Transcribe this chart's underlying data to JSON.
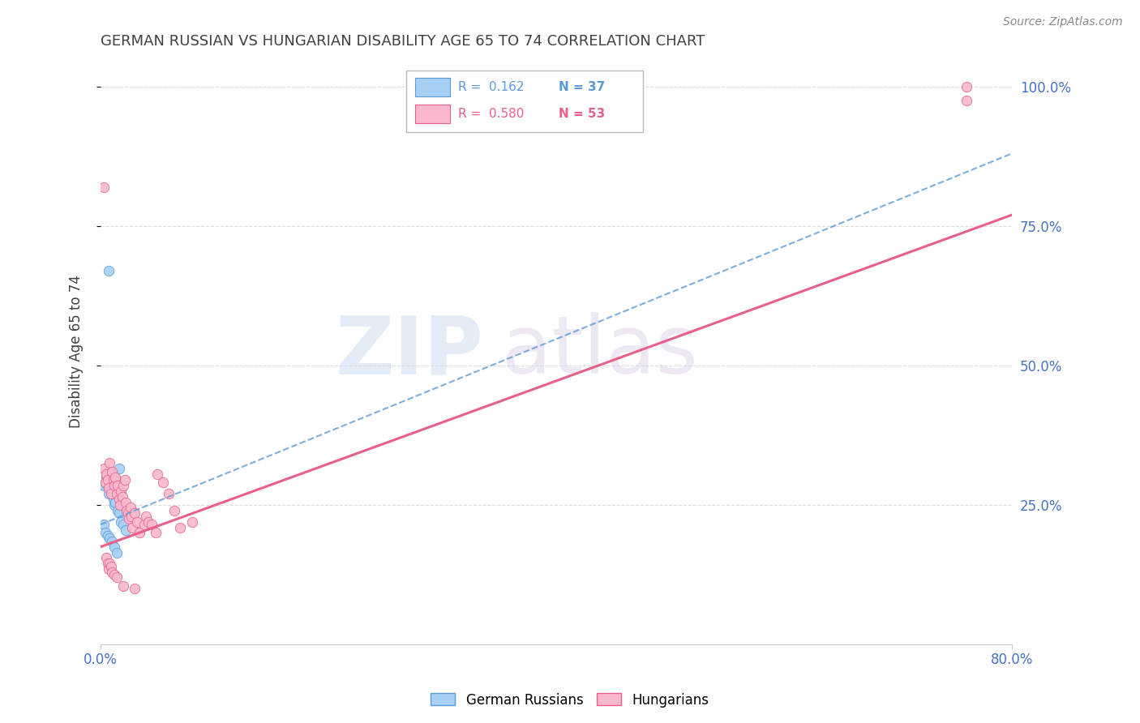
{
  "title": "GERMAN RUSSIAN VS HUNGARIAN DISABILITY AGE 65 TO 74 CORRELATION CHART",
  "source": "Source: ZipAtlas.com",
  "ylabel": "Disability Age 65 to 74",
  "xmin": 0.0,
  "xmax": 0.8,
  "ymin": 0.0,
  "ymax": 1.05,
  "x_tick_labels": [
    "0.0%",
    "80.0%"
  ],
  "y_tick_labels": [
    "25.0%",
    "50.0%",
    "75.0%",
    "100.0%"
  ],
  "y_ticks": [
    0.25,
    0.5,
    0.75,
    1.0
  ],
  "german_russian_color": "#A8D0F5",
  "hungarian_color": "#F9B8CC",
  "trend_german_color": "#5B9BD5",
  "trend_hungarian_color": "#E8608A",
  "background_color": "#FFFFFF",
  "grid_color": "#DDDDDD",
  "title_color": "#404040",
  "tick_color": "#4472C4",
  "german_russian_points": [
    [
      0.005,
      0.285
    ],
    [
      0.006,
      0.295
    ],
    [
      0.007,
      0.27
    ],
    [
      0.008,
      0.31
    ],
    [
      0.009,
      0.275
    ],
    [
      0.01,
      0.29
    ],
    [
      0.011,
      0.305
    ],
    [
      0.012,
      0.28
    ],
    [
      0.013,
      0.295
    ],
    [
      0.014,
      0.265
    ],
    [
      0.015,
      0.285
    ],
    [
      0.016,
      0.315
    ],
    [
      0.018,
      0.275
    ],
    [
      0.003,
      0.285
    ],
    [
      0.004,
      0.29
    ],
    [
      0.005,
      0.3
    ],
    [
      0.006,
      0.31
    ],
    [
      0.007,
      0.285
    ],
    [
      0.008,
      0.295
    ],
    [
      0.009,
      0.28
    ],
    [
      0.01,
      0.27
    ],
    [
      0.011,
      0.26
    ],
    [
      0.012,
      0.25
    ],
    [
      0.013,
      0.255
    ],
    [
      0.015,
      0.24
    ],
    [
      0.016,
      0.235
    ],
    [
      0.018,
      0.22
    ],
    [
      0.02,
      0.215
    ],
    [
      0.022,
      0.205
    ],
    [
      0.003,
      0.215
    ],
    [
      0.004,
      0.2
    ],
    [
      0.006,
      0.195
    ],
    [
      0.008,
      0.19
    ],
    [
      0.01,
      0.185
    ],
    [
      0.012,
      0.175
    ],
    [
      0.014,
      0.165
    ],
    [
      0.007,
      0.67
    ]
  ],
  "hungarian_points": [
    [
      0.003,
      0.315
    ],
    [
      0.004,
      0.29
    ],
    [
      0.005,
      0.305
    ],
    [
      0.006,
      0.295
    ],
    [
      0.007,
      0.28
    ],
    [
      0.008,
      0.325
    ],
    [
      0.009,
      0.27
    ],
    [
      0.01,
      0.31
    ],
    [
      0.011,
      0.295
    ],
    [
      0.012,
      0.285
    ],
    [
      0.013,
      0.3
    ],
    [
      0.014,
      0.27
    ],
    [
      0.015,
      0.285
    ],
    [
      0.016,
      0.26
    ],
    [
      0.017,
      0.25
    ],
    [
      0.018,
      0.275
    ],
    [
      0.019,
      0.265
    ],
    [
      0.02,
      0.285
    ],
    [
      0.021,
      0.295
    ],
    [
      0.022,
      0.255
    ],
    [
      0.023,
      0.24
    ],
    [
      0.024,
      0.235
    ],
    [
      0.025,
      0.225
    ],
    [
      0.026,
      0.245
    ],
    [
      0.027,
      0.23
    ],
    [
      0.028,
      0.21
    ],
    [
      0.03,
      0.235
    ],
    [
      0.032,
      0.22
    ],
    [
      0.034,
      0.2
    ],
    [
      0.038,
      0.215
    ],
    [
      0.04,
      0.23
    ],
    [
      0.042,
      0.22
    ],
    [
      0.045,
      0.215
    ],
    [
      0.048,
      0.2
    ],
    [
      0.05,
      0.305
    ],
    [
      0.055,
      0.29
    ],
    [
      0.06,
      0.27
    ],
    [
      0.065,
      0.24
    ],
    [
      0.07,
      0.21
    ],
    [
      0.08,
      0.22
    ],
    [
      0.003,
      0.82
    ],
    [
      0.005,
      0.155
    ],
    [
      0.006,
      0.145
    ],
    [
      0.007,
      0.135
    ],
    [
      0.008,
      0.145
    ],
    [
      0.009,
      0.14
    ],
    [
      0.01,
      0.13
    ],
    [
      0.012,
      0.125
    ],
    [
      0.014,
      0.12
    ],
    [
      0.02,
      0.105
    ],
    [
      0.03,
      0.1
    ],
    [
      0.76,
      1.0
    ],
    [
      0.76,
      0.975
    ]
  ]
}
